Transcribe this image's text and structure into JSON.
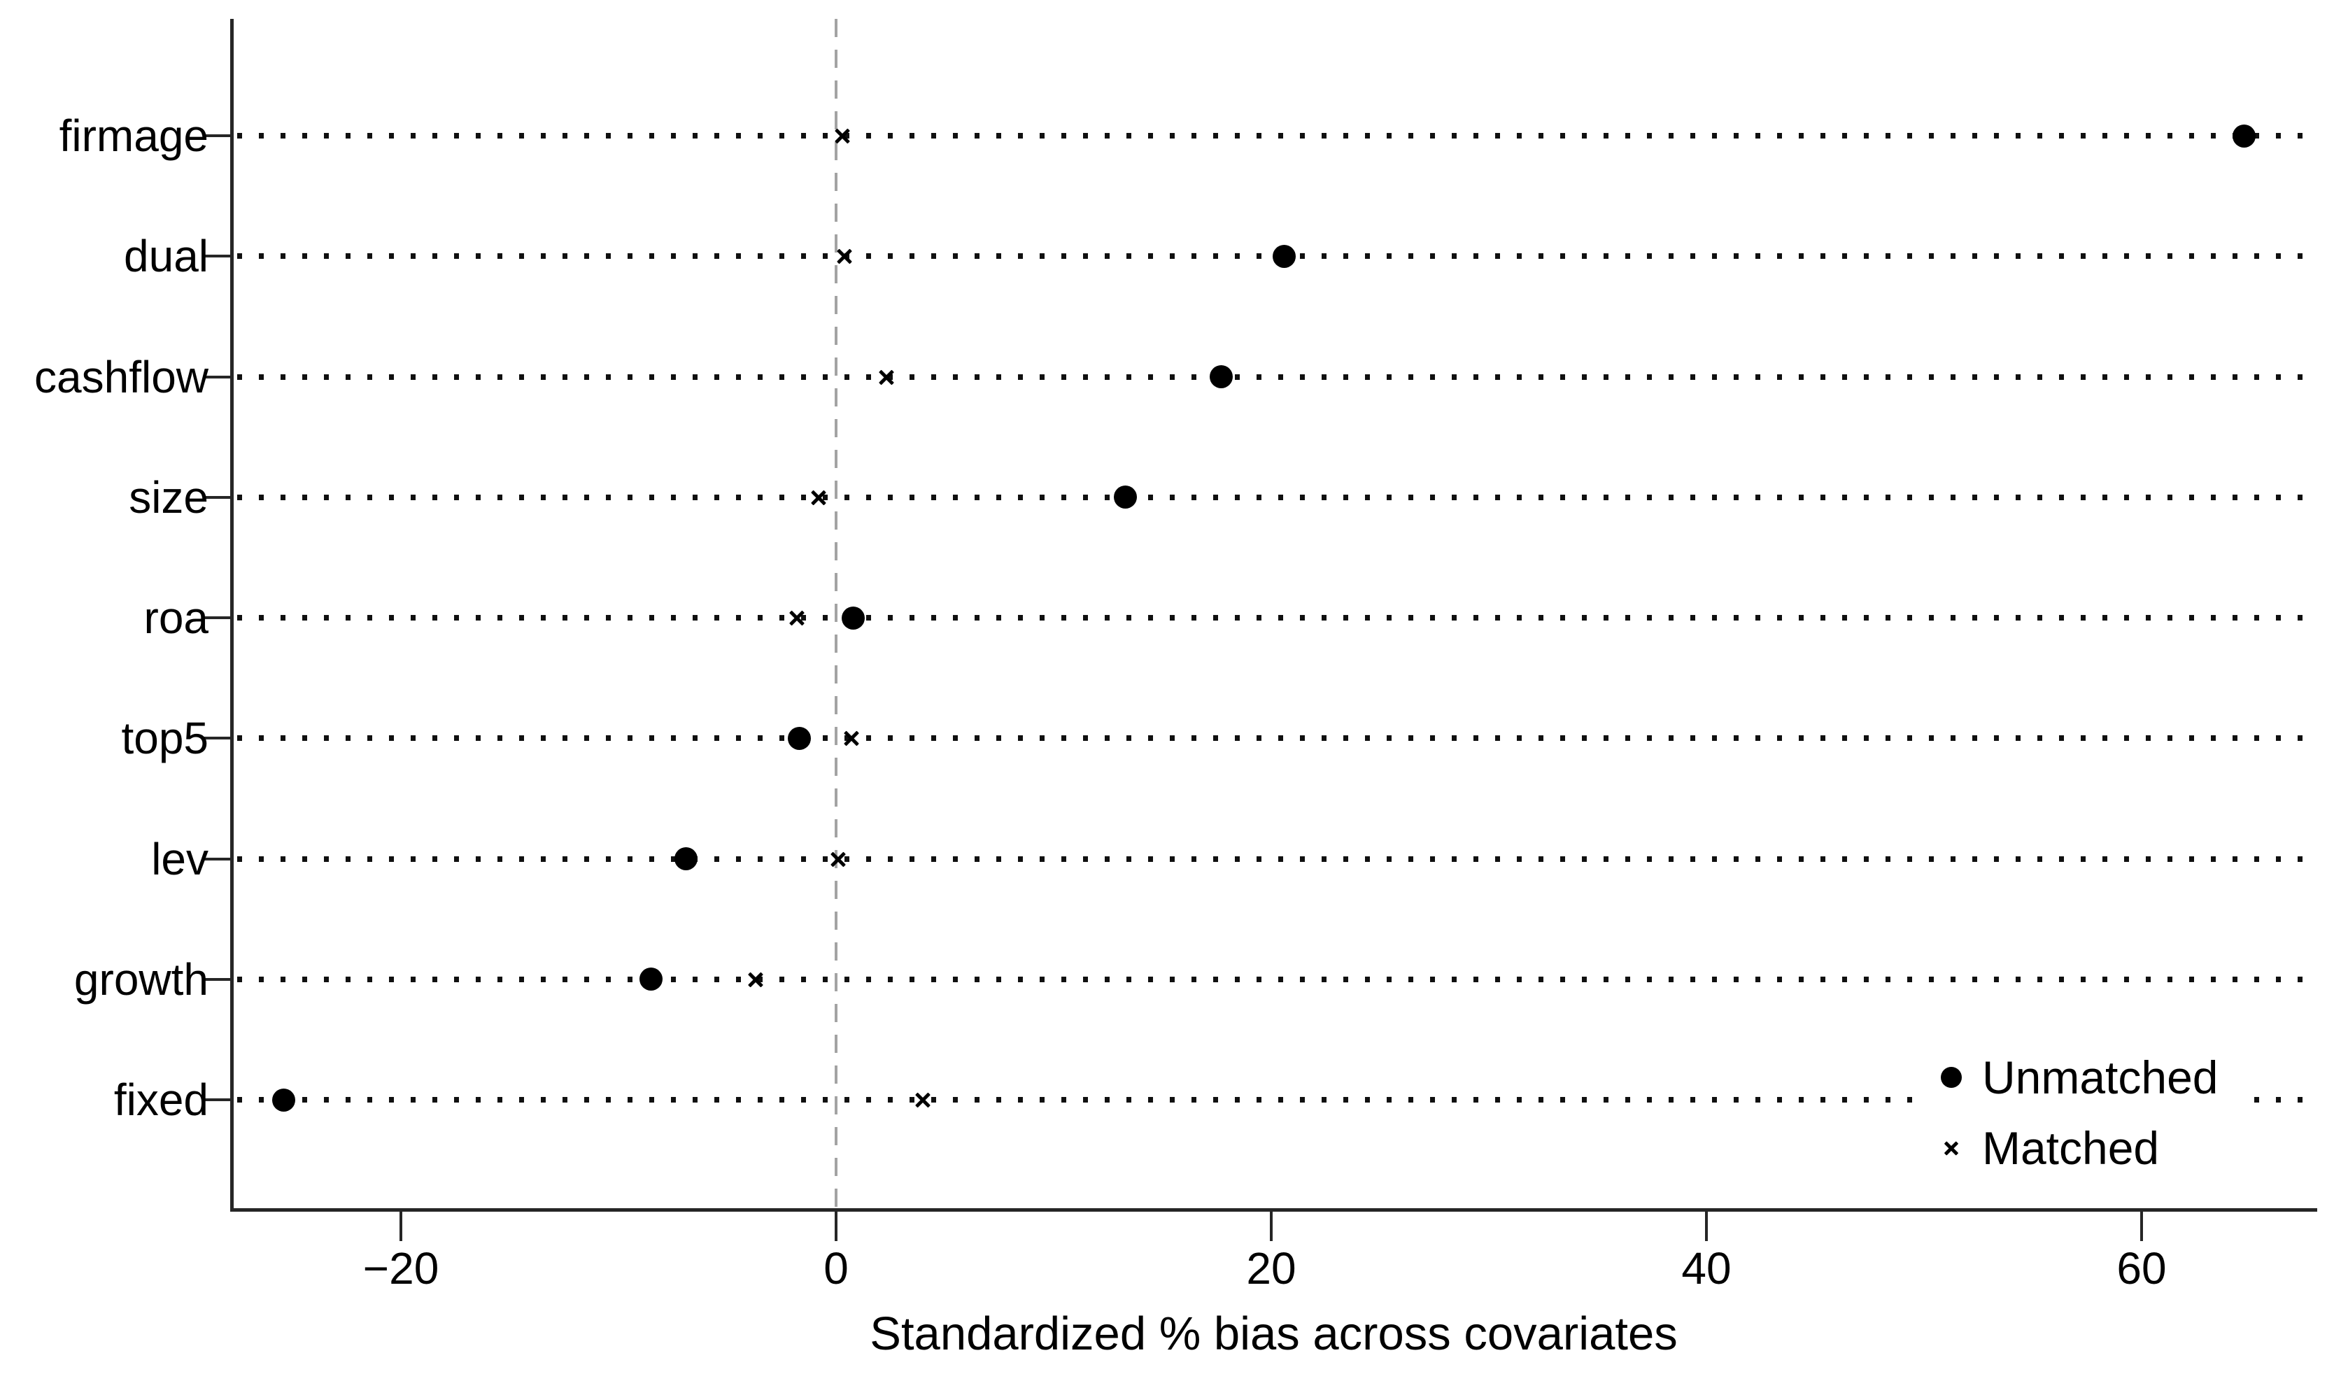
{
  "figure": {
    "x_tick_labels": [
      "−20",
      "0",
      "20",
      "40",
      "60"
    ],
    "xlabel": "Standardized % bias across covariates"
  },
  "legend": {
    "items": [
      {
        "label": "Unmatched",
        "marker": "filled-circle"
      },
      {
        "label": "Matched",
        "marker": "x"
      }
    ]
  },
  "chart_data": {
    "type": "scatter",
    "subtype": "horizontal-dot-plot-covariate-balance",
    "title": "",
    "xlabel": "Standardized % bias across covariates",
    "ylabel": "",
    "categories": [
      "firmage",
      "dual",
      "cashflow",
      "size",
      "roa",
      "top5",
      "lev",
      "growth",
      "fixed"
    ],
    "series": [
      {
        "name": "Unmatched",
        "marker": "filled-circle",
        "values": [
          64.7,
          20.6,
          17.7,
          13.3,
          0.8,
          -1.7,
          -6.9,
          -8.5,
          -25.4
        ]
      },
      {
        "name": "Matched",
        "marker": "x",
        "values": [
          0.3,
          0.4,
          2.3,
          -0.8,
          -1.8,
          0.7,
          0.1,
          -3.7,
          4.0
        ]
      }
    ],
    "xticks": [
      -20,
      0,
      20,
      40,
      60
    ],
    "xlim": [
      -27.7,
      68
    ],
    "reference_line_x": 0,
    "grid": "horizontal-dotted",
    "legend_position": "inside-bottom-right"
  },
  "colors": {
    "marker": "#000000",
    "text": "#000000",
    "axis": "#262626",
    "zero_line": "#a3a3a3",
    "grid_dot": "#101010",
    "background": "#ffffff"
  }
}
